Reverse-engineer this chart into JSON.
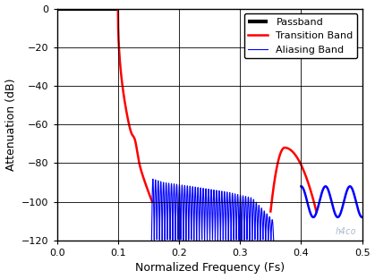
{
  "title": "",
  "xlabel": "Normalized Frequency (Fs)",
  "ylabel": "Attenuation (dB)",
  "xlim": [
    0,
    0.5
  ],
  "ylim": [
    -120,
    0
  ],
  "yticks": [
    0,
    -20,
    -40,
    -60,
    -80,
    -100,
    -120
  ],
  "xticks": [
    0,
    0.1,
    0.2,
    0.3,
    0.4,
    0.5
  ],
  "grid_color": "#000000",
  "background_color": "#ffffff",
  "passband_color": "#000000",
  "transition_color": "#ff0000",
  "aliasing_color": "#0000ff",
  "watermark": "h4co",
  "watermark_color": "#aabbcc",
  "legend_labels": [
    "Passband",
    "Transition Band",
    "Aliasing Band"
  ],
  "figsize": [
    4.19,
    3.12
  ],
  "dpi": 100
}
